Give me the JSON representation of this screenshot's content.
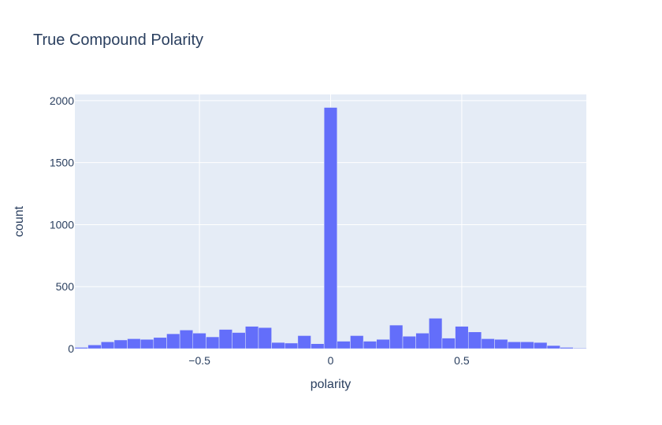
{
  "chart_data": {
    "type": "bar",
    "title": "True Compound Polarity",
    "xlabel": "polarity",
    "ylabel": "count",
    "xlim": [
      -0.975,
      0.975
    ],
    "ylim": [
      0,
      2050
    ],
    "x_ticks": [
      -0.5,
      0,
      0.5
    ],
    "x_tick_labels": [
      "−0.5",
      "0",
      "0.5"
    ],
    "y_ticks": [
      0,
      500,
      1000,
      1500,
      2000
    ],
    "y_tick_labels": [
      "0",
      "500",
      "1000",
      "1500",
      "2000"
    ],
    "bin_start": -0.975,
    "bin_width": 0.05,
    "counts": [
      10,
      30,
      55,
      70,
      80,
      75,
      90,
      120,
      150,
      125,
      95,
      155,
      130,
      180,
      170,
      50,
      45,
      105,
      40,
      1945,
      60,
      105,
      60,
      75,
      190,
      100,
      125,
      245,
      85,
      180,
      135,
      80,
      75,
      55,
      55,
      50,
      25,
      10,
      5
    ],
    "bar_color": "#636efa",
    "plot_bgcolor": "#e5ecf6",
    "grid": true
  }
}
